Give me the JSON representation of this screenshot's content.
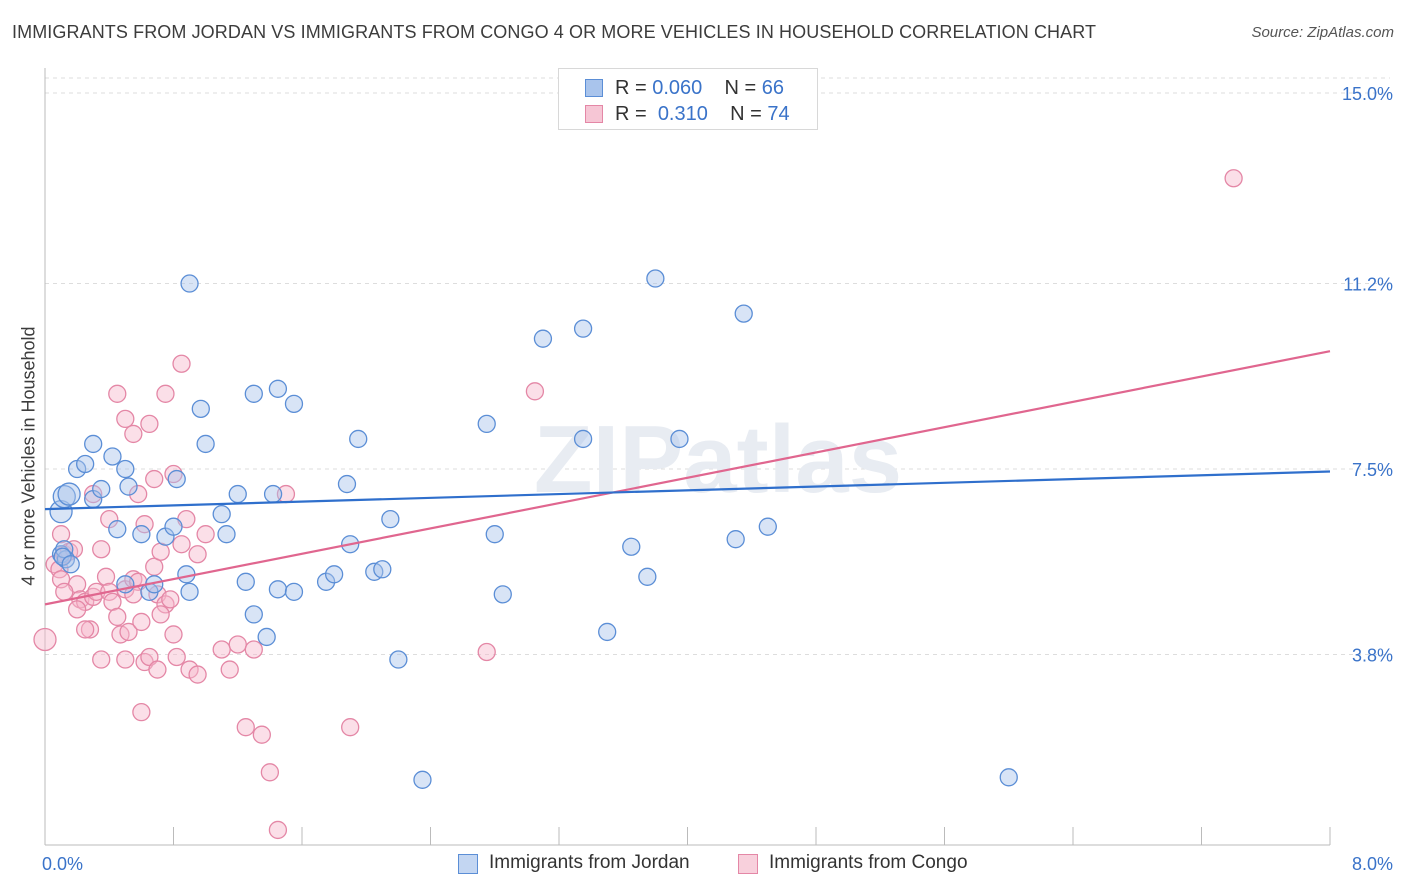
{
  "title": "IMMIGRANTS FROM JORDAN VS IMMIGRANTS FROM CONGO 4 OR MORE VEHICLES IN HOUSEHOLD CORRELATION CHART",
  "source": "Source: ZipAtlas.com",
  "watermark": "ZIPatlas",
  "legend_top": [
    {
      "r_label": "R =",
      "r_value": "0.060",
      "n_label": "N =",
      "n_value": "66"
    },
    {
      "r_label": "R =",
      "r_value": "0.310",
      "n_label": "N =",
      "n_value": "74"
    }
  ],
  "colors": {
    "jordan_fill": "#a9c4ec",
    "jordan_stroke": "#5b8ed6",
    "jordan_line": "#2f6fcc",
    "congo_fill": "#f6b9cb",
    "congo_stroke": "#e487a6",
    "congo_line": "#e0668f",
    "tick_label": "#3a73c9",
    "grid": "#dddddd"
  },
  "chart_data": {
    "type": "scatter",
    "title": "IMMIGRANTS FROM JORDAN VS IMMIGRANTS FROM CONGO 4 OR MORE VEHICLES IN HOUSEHOLD CORRELATION CHART",
    "xlabel": "",
    "ylabel": "4 or more Vehicles in Household",
    "xlim": [
      0,
      8.0
    ],
    "ylim": [
      0,
      15.3
    ],
    "x_tick_labels": [
      "0.0%",
      "8.0%"
    ],
    "y_ticks": [
      3.8,
      7.5,
      11.2,
      15.0
    ],
    "y_tick_labels": [
      "3.8%",
      "7.5%",
      "11.2%",
      "15.0%"
    ],
    "grid": true,
    "legend_placement": "bottom",
    "series": [
      {
        "name": "Immigrants from Jordan",
        "r": 0.06,
        "n": 66,
        "trend": [
          [
            0.0,
            6.7
          ],
          [
            8.0,
            7.45
          ]
        ],
        "points": [
          [
            0.1,
            6.65
          ],
          [
            0.12,
            6.95
          ],
          [
            0.15,
            7.0
          ],
          [
            0.2,
            7.5
          ],
          [
            0.25,
            7.6
          ],
          [
            0.3,
            8.0
          ],
          [
            0.42,
            7.75
          ],
          [
            0.5,
            7.5
          ],
          [
            0.52,
            7.15
          ],
          [
            0.1,
            5.8
          ],
          [
            0.13,
            5.7
          ],
          [
            0.12,
            5.9
          ],
          [
            0.3,
            6.9
          ],
          [
            0.35,
            7.1
          ],
          [
            0.45,
            6.3
          ],
          [
            0.6,
            6.2
          ],
          [
            0.65,
            5.05
          ],
          [
            0.68,
            5.2
          ],
          [
            0.75,
            6.15
          ],
          [
            0.8,
            6.35
          ],
          [
            0.82,
            7.3
          ],
          [
            0.9,
            5.05
          ],
          [
            0.88,
            5.4
          ],
          [
            1.0,
            8.0
          ],
          [
            0.97,
            8.7
          ],
          [
            1.1,
            6.6
          ],
          [
            1.13,
            6.2
          ],
          [
            1.25,
            5.25
          ],
          [
            1.2,
            7.0
          ],
          [
            1.3,
            4.6
          ],
          [
            1.38,
            4.15
          ],
          [
            1.42,
            7.0
          ],
          [
            1.45,
            5.1
          ],
          [
            1.55,
            5.05
          ],
          [
            0.9,
            11.2
          ],
          [
            1.3,
            9.0
          ],
          [
            1.45,
            9.1
          ],
          [
            1.55,
            8.8
          ],
          [
            1.75,
            5.25
          ],
          [
            1.8,
            5.4
          ],
          [
            1.9,
            6.0
          ],
          [
            1.95,
            8.1
          ],
          [
            1.88,
            7.2
          ],
          [
            2.05,
            5.45
          ],
          [
            2.1,
            5.5
          ],
          [
            2.15,
            6.5
          ],
          [
            2.2,
            3.7
          ],
          [
            2.35,
            1.3
          ],
          [
            2.75,
            8.4
          ],
          [
            2.8,
            6.2
          ],
          [
            2.85,
            5.0
          ],
          [
            3.1,
            10.1
          ],
          [
            3.35,
            10.3
          ],
          [
            3.35,
            8.1
          ],
          [
            3.5,
            4.25
          ],
          [
            3.65,
            5.95
          ],
          [
            3.75,
            5.35
          ],
          [
            3.8,
            11.3
          ],
          [
            3.95,
            8.1
          ],
          [
            4.3,
            6.1
          ],
          [
            4.35,
            10.6
          ],
          [
            4.5,
            6.35
          ],
          [
            6.0,
            1.35
          ],
          [
            0.11,
            5.75
          ],
          [
            0.16,
            5.6
          ],
          [
            0.5,
            5.2
          ]
        ]
      },
      {
        "name": "Immigrants from Congo",
        "r": 0.31,
        "n": 74,
        "trend": [
          [
            0.0,
            4.8
          ],
          [
            8.0,
            9.85
          ]
        ],
        "points": [
          [
            0.0,
            4.1
          ],
          [
            0.06,
            5.6
          ],
          [
            0.09,
            5.5
          ],
          [
            0.1,
            5.3
          ],
          [
            0.1,
            6.2
          ],
          [
            0.12,
            5.8
          ],
          [
            0.15,
            5.85
          ],
          [
            0.18,
            5.9
          ],
          [
            0.2,
            5.2
          ],
          [
            0.22,
            4.9
          ],
          [
            0.25,
            4.85
          ],
          [
            0.28,
            4.3
          ],
          [
            0.3,
            4.95
          ],
          [
            0.32,
            5.05
          ],
          [
            0.35,
            5.9
          ],
          [
            0.38,
            5.35
          ],
          [
            0.4,
            5.05
          ],
          [
            0.42,
            4.85
          ],
          [
            0.45,
            4.55
          ],
          [
            0.47,
            4.2
          ],
          [
            0.5,
            5.1
          ],
          [
            0.52,
            4.25
          ],
          [
            0.55,
            5.3
          ],
          [
            0.58,
            5.25
          ],
          [
            0.6,
            4.45
          ],
          [
            0.62,
            3.65
          ],
          [
            0.65,
            3.75
          ],
          [
            0.68,
            5.55
          ],
          [
            0.7,
            5.0
          ],
          [
            0.72,
            5.85
          ],
          [
            0.75,
            4.8
          ],
          [
            0.78,
            4.9
          ],
          [
            0.82,
            3.75
          ],
          [
            0.85,
            6.0
          ],
          [
            0.88,
            6.5
          ],
          [
            0.9,
            3.5
          ],
          [
            0.95,
            5.8
          ],
          [
            1.0,
            6.2
          ],
          [
            1.1,
            3.9
          ],
          [
            1.15,
            3.5
          ],
          [
            1.2,
            4.0
          ],
          [
            1.25,
            2.35
          ],
          [
            1.35,
            2.2
          ],
          [
            1.4,
            1.45
          ],
          [
            1.45,
            0.3
          ],
          [
            0.6,
            2.65
          ],
          [
            0.7,
            3.5
          ],
          [
            0.8,
            7.4
          ],
          [
            0.85,
            9.6
          ],
          [
            0.75,
            9.0
          ],
          [
            0.65,
            8.4
          ],
          [
            0.55,
            8.2
          ],
          [
            0.5,
            8.5
          ],
          [
            0.45,
            9.0
          ],
          [
            0.58,
            7.0
          ],
          [
            0.62,
            6.4
          ],
          [
            0.4,
            6.5
          ],
          [
            0.3,
            7.0
          ],
          [
            2.75,
            3.85
          ],
          [
            1.9,
            2.35
          ],
          [
            3.05,
            9.05
          ],
          [
            7.4,
            13.3
          ],
          [
            0.35,
            3.7
          ],
          [
            0.5,
            3.7
          ],
          [
            0.68,
            7.3
          ],
          [
            0.8,
            4.2
          ],
          [
            0.95,
            3.4
          ],
          [
            1.3,
            3.9
          ],
          [
            0.2,
            4.7
          ],
          [
            0.25,
            4.3
          ],
          [
            1.5,
            7.0
          ],
          [
            0.55,
            5.0
          ],
          [
            0.72,
            4.6
          ],
          [
            0.12,
            5.05
          ]
        ]
      }
    ]
  },
  "legend_bottom": [
    "Immigrants from Jordan",
    "Immigrants from Congo"
  ]
}
